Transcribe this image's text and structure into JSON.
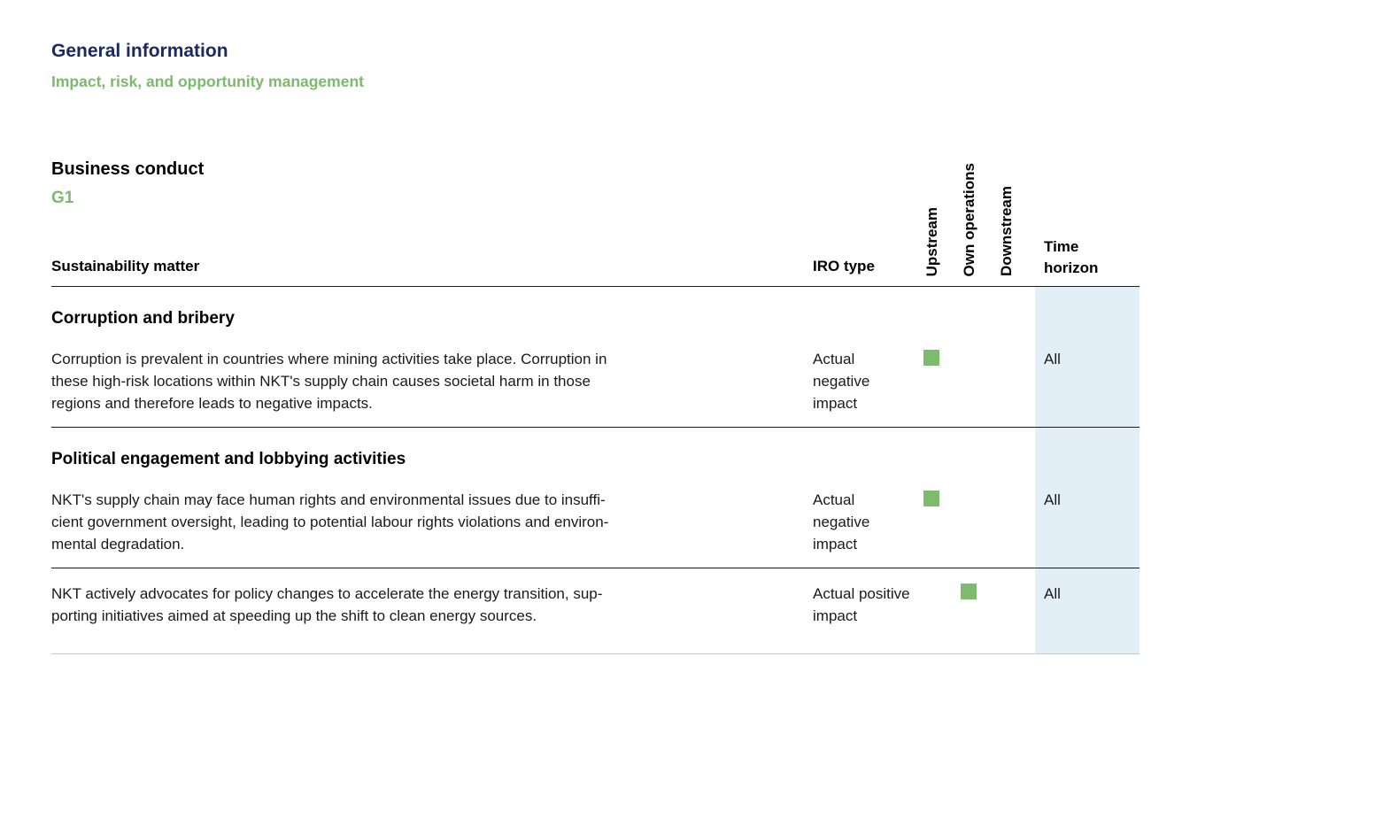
{
  "page": {
    "title": "General information",
    "subtitle": "Impact, risk, and opportunity management"
  },
  "section": {
    "title": "Business conduct",
    "code": "G1"
  },
  "table": {
    "headers": {
      "matter": "Sustainability matter",
      "iro_type": "IRO type",
      "upstream": "Upstream",
      "own_operations": "Own operations",
      "downstream": "Downstream",
      "time_horizon": "Time horizon"
    },
    "rows": [
      {
        "heading": "Corruption and bribery",
        "description_lines": [
          "Corruption is prevalent in countries where mining activities take place. Corruption in",
          "these high-risk locations within NKT's supply chain causes societal harm in those",
          "regions and therefore leads to negative impacts."
        ],
        "iro_type": "Actual negative impact",
        "upstream": true,
        "own_operations": false,
        "downstream": false,
        "time_horizon": "All"
      },
      {
        "heading": "Political engagement and lobbying activities",
        "description_lines": [
          "NKT's supply chain may face human rights and environmental issues due to insuffi-",
          "cient government oversight, leading to potential labour rights violations and environ-",
          "mental degradation."
        ],
        "iro_type": "Actual negative impact",
        "upstream": true,
        "own_operations": false,
        "downstream": false,
        "time_horizon": "All"
      },
      {
        "heading": "",
        "description_lines": [
          "NKT actively advocates for policy changes to accelerate the energy transition, sup-",
          "porting initiatives aimed at speeding up the shift to clean energy sources."
        ],
        "iro_type": "Actual positive impact",
        "upstream": false,
        "own_operations": true,
        "downstream": false,
        "time_horizon": "All"
      }
    ]
  },
  "colors": {
    "title_navy": "#1b2a63",
    "accent_green": "#7cba6d",
    "marker_green": "#7fbb6e",
    "time_column_blue": "#e3eff6"
  }
}
